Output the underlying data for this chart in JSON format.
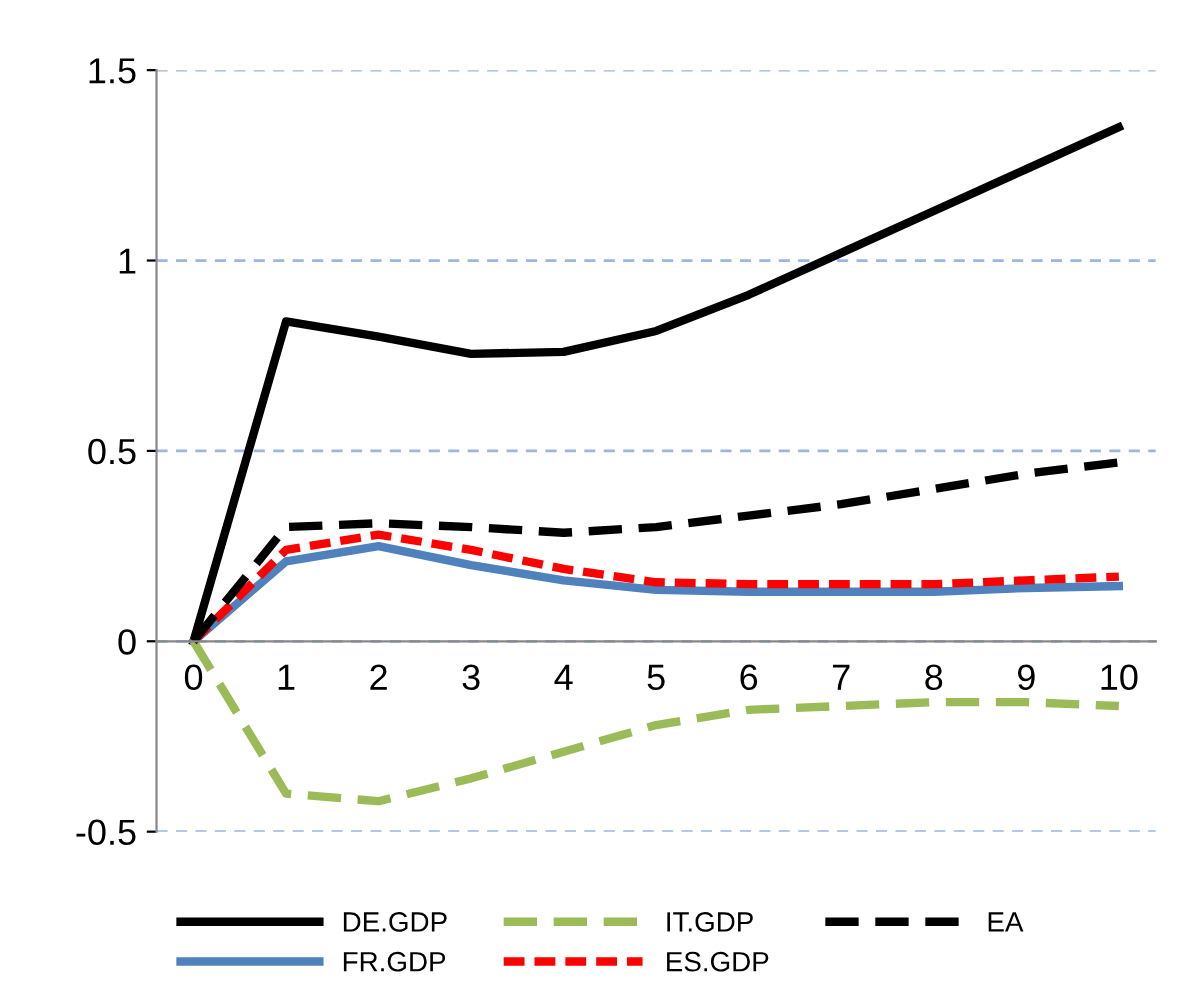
{
  "chart_data": {
    "type": "line",
    "categories": [
      "0",
      "1",
      "2",
      "3",
      "4",
      "5",
      "6",
      "7",
      "8",
      "9",
      "10"
    ],
    "ylim": [
      -0.5,
      1.5
    ],
    "yticks": [
      -0.5,
      0,
      0.5,
      1,
      1.5
    ],
    "grid": "y",
    "legend": "bottom",
    "marker": "none",
    "series": [
      {
        "name": "DE.GDP",
        "color": "#000000",
        "line_style": "solid",
        "values": [
          0,
          0.84,
          0.8,
          0.755,
          0.76,
          0.815,
          0.91,
          1.02,
          1.13,
          1.24,
          1.35
        ]
      },
      {
        "name": "FR.GDP",
        "color": "#4f81bd",
        "line_style": "solid",
        "values": [
          0,
          0.21,
          0.25,
          0.2,
          0.16,
          0.135,
          0.13,
          0.13,
          0.13,
          0.14,
          0.145
        ]
      },
      {
        "name": "IT.GDP",
        "color": "#9bbb59",
        "line_style": "dashed",
        "values": [
          0,
          -0.4,
          -0.42,
          -0.36,
          -0.29,
          -0.22,
          -0.18,
          -0.17,
          -0.16,
          -0.16,
          -0.17
        ]
      },
      {
        "name": "ES.GDP",
        "color": "#ff0000",
        "line_style": "dotted",
        "values": [
          0,
          0.24,
          0.28,
          0.24,
          0.19,
          0.155,
          0.15,
          0.15,
          0.15,
          0.16,
          0.17
        ]
      },
      {
        "name": "EA",
        "color": "#000000",
        "line_style": "dashed",
        "values": [
          0,
          0.3,
          0.31,
          0.3,
          0.285,
          0.3,
          0.33,
          0.36,
          0.4,
          0.44,
          0.47
        ]
      }
    ]
  }
}
